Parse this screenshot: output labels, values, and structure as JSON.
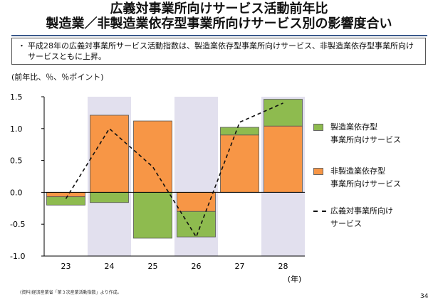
{
  "title_line1": "広義対事業所向けサービス活動前年比",
  "title_line2": "製造業／非製造業依存型事業所向けサービス別の影響度合い",
  "summary": {
    "bullet": "・",
    "text": "平成28年の広義対事業所サービス活動指数は、製造業依存型事業所向けサービス、非製造業依存型事業所向けサービスともに上昇。"
  },
  "unit_label": "(前年比、％、％ポイント)",
  "x_unit": "(年)",
  "source": "(資料)経済産業省「第３次産業活動指数」より作成。",
  "page_number": "34",
  "colors": {
    "manufacturing": "#8ebb4f",
    "non_manufacturing": "#f79646",
    "shade": "#e2e0ee",
    "line": "#111111"
  },
  "chart_data": {
    "type": "bar",
    "stacked": true,
    "categories": [
      "23",
      "24",
      "25",
      "26",
      "27",
      "28"
    ],
    "ylim": [
      -1.0,
      1.5
    ],
    "yticks": [
      "-1.0",
      "-0.5",
      "0.0",
      "0.5",
      "1.0",
      "1.5"
    ],
    "shaded_categories": [
      "24",
      "26",
      "28"
    ],
    "series": [
      {
        "name": "製造業依存型\n事業所向けサービス",
        "values": [
          -0.13,
          -0.16,
          -0.72,
          -0.4,
          0.12,
          0.42
        ]
      },
      {
        "name": "非製造業依存型\n事業所向けサービス",
        "values": [
          -0.07,
          1.21,
          1.12,
          -0.3,
          0.9,
          1.04
        ]
      }
    ],
    "line": {
      "name": "広義対事業所向け\nサービス",
      "style": "dashed",
      "values": [
        -0.1,
        1.0,
        0.4,
        -0.7,
        1.1,
        1.4
      ]
    }
  }
}
